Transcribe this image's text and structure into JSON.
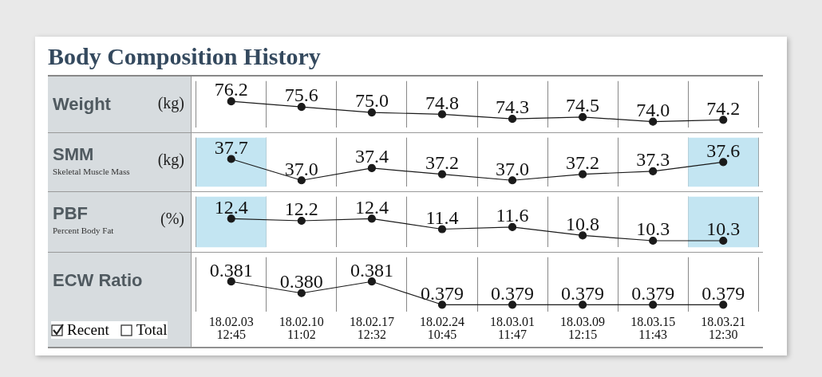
{
  "chart_data": [
    {
      "type": "line",
      "title": "Body Composition History",
      "ylabel": "Weight",
      "annotations": [
        "(kg)"
      ],
      "categories": [
        "18.02.03 12:45",
        "18.02.10 11:02",
        "18.02.17 12:32",
        "18.02.24 10:45",
        "18.03.01 11:47",
        "18.03.09 12:15",
        "18.03.15 11:43",
        "18.03.21 12:30"
      ],
      "marker": "circle",
      "grid": "x",
      "tick_labels": false,
      "series": [
        {
          "color": "#1a1a1a",
          "values": [
            76.2,
            75.6,
            75.0,
            74.8,
            74.3,
            74.5,
            74.0,
            74.2
          ],
          "value_labels": [
            "76.2",
            "75.6",
            "75.0",
            "74.8",
            "74.3",
            "74.5",
            "74.0",
            "74.2"
          ]
        }
      ]
    },
    {
      "type": "line",
      "ylabel": "SMM",
      "annotations": [
        "(kg)",
        "Skeletal Muscle Mass"
      ],
      "categories": [
        "18.02.03 12:45",
        "18.02.10 11:02",
        "18.02.17 12:32",
        "18.02.24 10:45",
        "18.03.01 11:47",
        "18.03.09 12:15",
        "18.03.15 11:43",
        "18.03.21 12:30"
      ],
      "marker": "circle",
      "grid": "x",
      "tick_labels": false,
      "bands": [
        {
          "axis": "x",
          "from": "18.02.03 12:45",
          "to": "18.02.03 12:45",
          "color": "#c3e5f2"
        },
        {
          "axis": "x",
          "from": "18.03.21 12:30",
          "to": "18.03.21 12:30",
          "color": "#c3e5f2"
        }
      ],
      "series": [
        {
          "color": "#1a1a1a",
          "values": [
            37.7,
            37.0,
            37.4,
            37.2,
            37.0,
            37.2,
            37.3,
            37.6
          ],
          "value_labels": [
            "37.7",
            "37.0",
            "37.4",
            "37.2",
            "37.0",
            "37.2",
            "37.3",
            "37.6"
          ]
        }
      ]
    },
    {
      "type": "line",
      "ylabel": "PBF",
      "annotations": [
        "(%)",
        "Percent Body Fat"
      ],
      "categories": [
        "18.02.03 12:45",
        "18.02.10 11:02",
        "18.02.17 12:32",
        "18.02.24 10:45",
        "18.03.01 11:47",
        "18.03.09 12:15",
        "18.03.15 11:43",
        "18.03.21 12:30"
      ],
      "marker": "circle",
      "grid": "x",
      "tick_labels": false,
      "bands": [
        {
          "axis": "x",
          "from": "18.02.03 12:45",
          "to": "18.02.03 12:45",
          "color": "#c3e5f2"
        },
        {
          "axis": "x",
          "from": "18.03.21 12:30",
          "to": "18.03.21 12:30",
          "color": "#c3e5f2"
        }
      ],
      "series": [
        {
          "color": "#1a1a1a",
          "values": [
            12.4,
            12.2,
            12.4,
            11.4,
            11.6,
            10.8,
            10.3,
            10.3
          ],
          "value_labels": [
            "12.4",
            "12.2",
            "12.4",
            "11.4",
            "11.6",
            "10.8",
            "10.3",
            "10.3"
          ]
        }
      ]
    },
    {
      "type": "line",
      "ylabel": "ECW Ratio",
      "annotations": [
        "Recent",
        "Total"
      ],
      "categories": [
        "18.02.03 12:45",
        "18.02.10 11:02",
        "18.02.17 12:32",
        "18.02.24 10:45",
        "18.03.01 11:47",
        "18.03.09 12:15",
        "18.03.15 11:43",
        "18.03.21 12:30"
      ],
      "marker": "circle",
      "grid": "x",
      "tick_labels": "x",
      "series": [
        {
          "color": "#1a1a1a",
          "values": [
            0.381,
            0.38,
            0.381,
            0.379,
            0.379,
            0.379,
            0.379,
            0.379
          ],
          "value_labels": [
            "0.381",
            "0.380",
            "0.381",
            "0.379",
            "0.379",
            "0.379",
            "0.379",
            "0.379"
          ]
        }
      ]
    }
  ]
}
